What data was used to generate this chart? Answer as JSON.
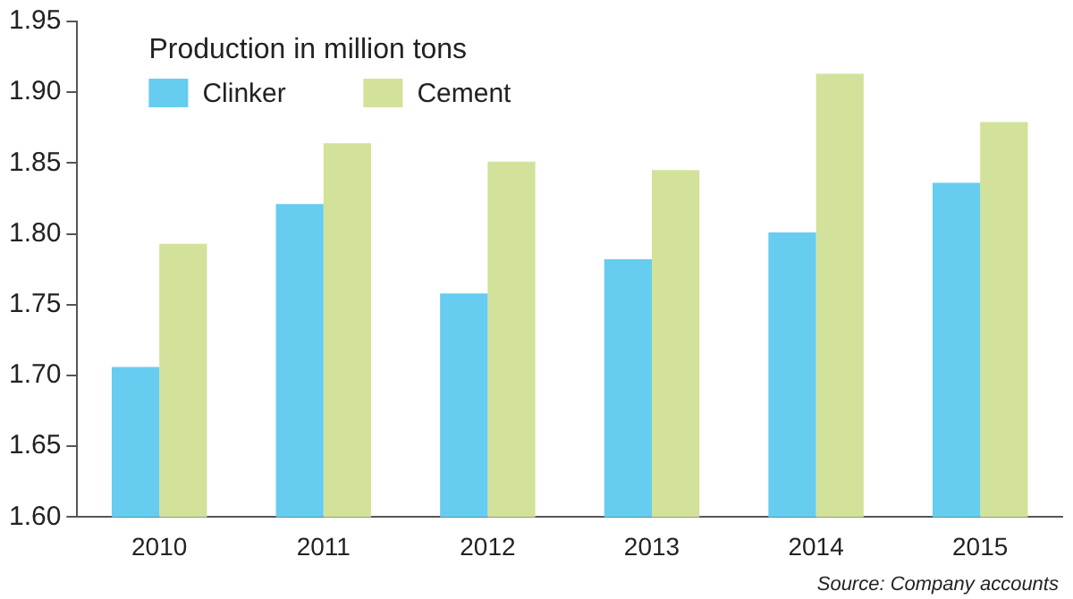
{
  "chart_data": {
    "type": "bar",
    "legend_title": "Production in million tons",
    "categories": [
      "2010",
      "2011",
      "2012",
      "2013",
      "2014",
      "2015"
    ],
    "series": [
      {
        "name": "Clinker",
        "color": "#66ccf0",
        "values": [
          1.706,
          1.821,
          1.758,
          1.782,
          1.801,
          1.836
        ]
      },
      {
        "name": "Cement",
        "color": "#d2e29a",
        "values": [
          1.793,
          1.864,
          1.851,
          1.845,
          1.913,
          1.879
        ]
      }
    ],
    "ylim": [
      1.6,
      1.95
    ],
    "yticks": [
      {
        "value": 1.6,
        "label": "1.60"
      },
      {
        "value": 1.65,
        "label": "1.65"
      },
      {
        "value": 1.7,
        "label": "1.70"
      },
      {
        "value": 1.75,
        "label": "1.75"
      },
      {
        "value": 1.8,
        "label": "1.80"
      },
      {
        "value": 1.85,
        "label": "1.85"
      },
      {
        "value": 1.9,
        "label": "1.90"
      },
      {
        "value": 1.95,
        "label": "1.95"
      }
    ],
    "grid": false,
    "legend": "top left",
    "annotations": [
      "Source: Company accounts"
    ]
  }
}
